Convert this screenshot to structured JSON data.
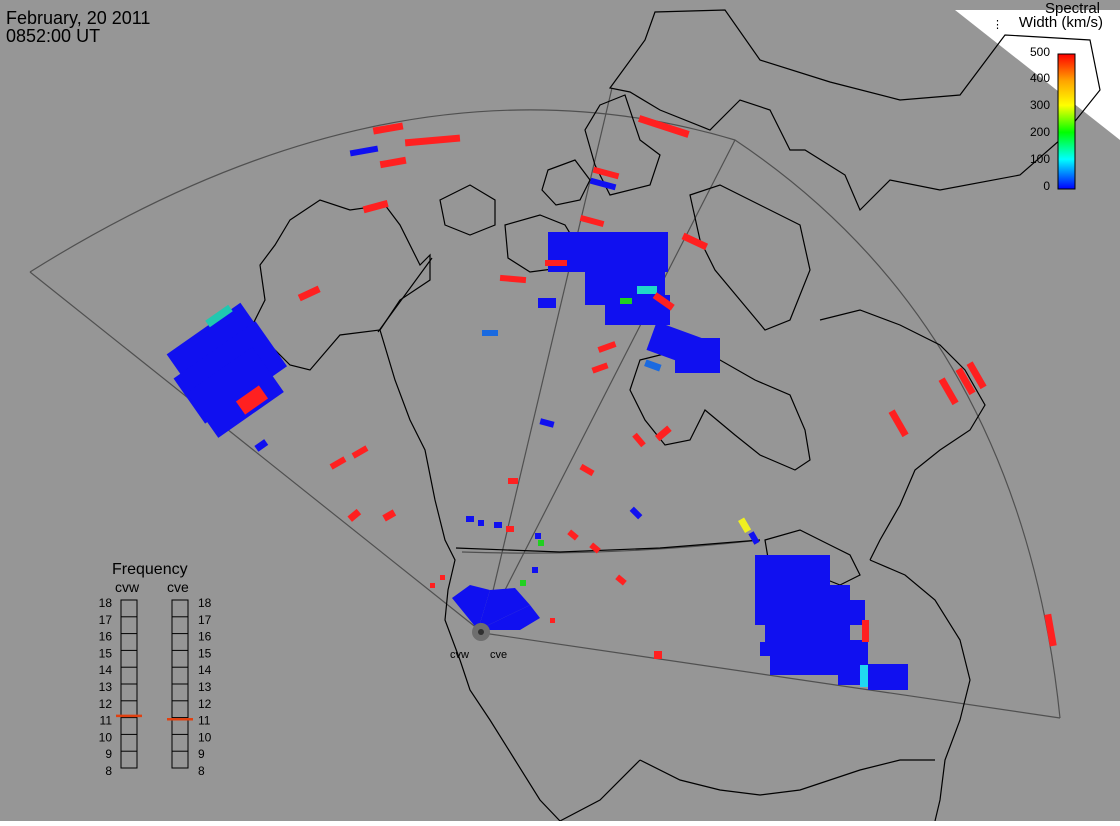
{
  "header": {
    "date": "February, 20 2011",
    "time": "0852:00 UT"
  },
  "colorbar": {
    "title_line1": "Spectral",
    "title_line2": "Width (km/s)",
    "ticks": [
      "500",
      "400",
      "300",
      "200",
      "100",
      "0"
    ],
    "colors": [
      "#0000ff",
      "#00ffff",
      "#00ff00",
      "#ffff00",
      "#ffa500",
      "#ff0000"
    ]
  },
  "frequency_panel": {
    "title": "Frequency",
    "radars": [
      {
        "label": "cvw",
        "value": 11.1
      },
      {
        "label": "cve",
        "value": 10.9
      }
    ],
    "ticks": [
      "18",
      "17",
      "16",
      "15",
      "14",
      "13",
      "12",
      "11",
      "10",
      "9",
      "8"
    ]
  },
  "radar_sites": [
    {
      "label": "cvw"
    },
    {
      "label": "cve"
    }
  ],
  "palette": {
    "background": "#969696",
    "land_outline": "#000000",
    "fov_outline": "#505050",
    "high_width": "#ff0000",
    "low_width": "#1010f0",
    "medium_width": "#00c8c8",
    "marker_indicator": "#e04010"
  }
}
